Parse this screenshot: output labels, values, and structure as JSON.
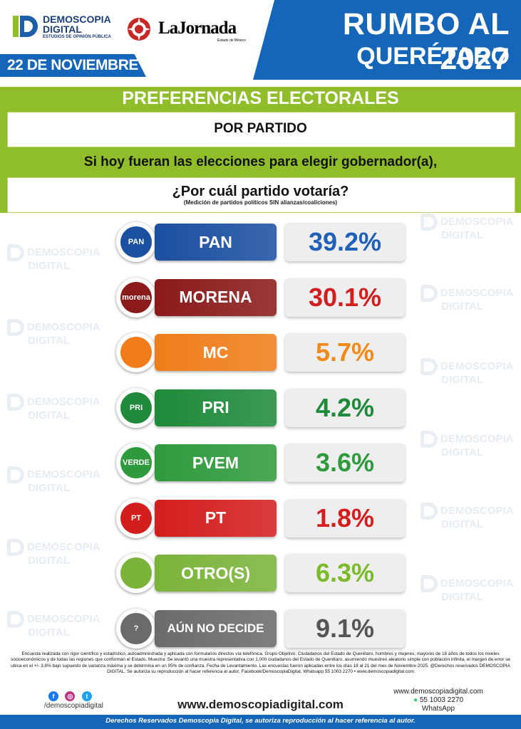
{
  "header": {
    "brand_name_line1": "DEMOSCOPIA",
    "brand_name_line2": "DIGITAL",
    "brand_tagline": "ESTUDIOS DE OPINIÓN PÚBLICA",
    "partner_name": "LaJornada",
    "partner_sub": "Estado de México",
    "date": "22 DE NOVIEMBRE",
    "title_line1": "RUMBO AL 2027",
    "title_line2": "QUERÉTARO"
  },
  "section": {
    "title": "PREFERENCIAS ELECTORALES",
    "subtitle": "POR PARTIDO",
    "question_line1": "Si hoy fueran las elecciones para elegir gobernador(a),",
    "question_line2": "¿Por cuál partido votaría?",
    "question_note": "(Medición de partidos políticos SIN alianzas/coaliciones)"
  },
  "chart_data": {
    "type": "bar",
    "categories": [
      "PAN",
      "MORENA",
      "MC",
      "PRI",
      "PVEM",
      "PT",
      "OTRO(S)",
      "AÚN NO DECIDE"
    ],
    "values": [
      39.2,
      30.1,
      5.7,
      4.2,
      3.6,
      1.8,
      6.3,
      9.1
    ],
    "value_labels": [
      "39.2%",
      "30.1%",
      "5.7%",
      "4.2%",
      "3.6%",
      "1.8%",
      "6.3%",
      "9.1%"
    ],
    "logo_texts": [
      "PAN",
      "morena",
      "",
      "PRI",
      "VERDE",
      "PT",
      "",
      "?"
    ],
    "colors": [
      "#1b4fa0",
      "#8b1a1a",
      "#f07d1a",
      "#1e8a3a",
      "#2f9a3c",
      "#d41e1e",
      "#7bb33a",
      "#6b6b6b"
    ],
    "value_colors": [
      "#2060b8",
      "#d21e1e",
      "#f08a1a",
      "#1e8a3a",
      "#2f9a3c",
      "#d41e1e",
      "#7bbb2a",
      "#555555"
    ]
  },
  "footer": {
    "methodology": "Encuesta realizada con rigor científico y estadístico, autoadministrada y aplicada con formularios directos vía telefónica. Grupo Objetivo: Ciudadanos del Estado de Querétaro, hombres y mujeres, mayores de 18 años de todos los niveles socioeconómicos y de todas las regiones que conforman el Estado. Muestra: Se levantó una muestra representativa con 1,000 ciudadanos del Estado de Querétaro, asumiendo muestreo aleatorio simple con población infinita, el margen de error se ubica en el +/- 3.8% bajo supuesto de varianza máxima y se determina en un 95% de confianza. Fecha de Levantamiento. Las encuestas fueron aplicadas entre los días 18 al 21 del mes de Noviembre 2025. @Derechos reservados DEMOSCOPIA DIGITAL. Se autoriza su reproducción al hacer referencia al autor, Facebook/DemoscopiaDigital, Whatsapp 55 1003 2270 • www.demoscopiadigital.com",
    "social_handle": "/demoscopiadigital",
    "website_big": "www.demoscopiadigital.com",
    "contact_web": "www.demoscopiadigital.com",
    "contact_phone": "55 1003 2270",
    "contact_label": "WhatsApp",
    "rights": "Derechos Reservados Demoscopia Digital, se autoriza reproducción al hacer referencia al autor."
  }
}
